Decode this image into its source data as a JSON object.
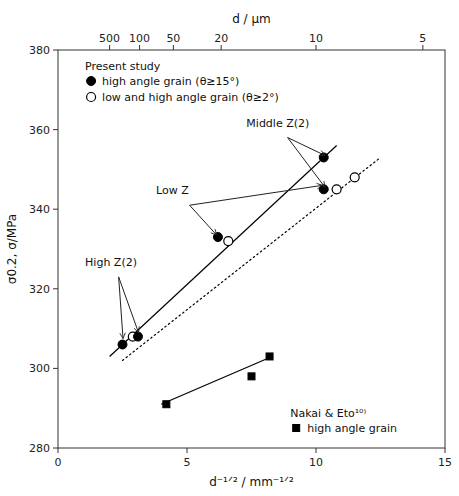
{
  "chart_data": {
    "type": "scatter",
    "x_label": "d⁻¹ᐟ² / mm⁻¹ᐟ²",
    "x2_label": "d / μm",
    "y_label": "σ0.2, σ/MPa",
    "xlim": [
      0,
      15
    ],
    "ylim": [
      280,
      380
    ],
    "xticks": [
      0,
      5,
      10,
      15
    ],
    "yticks": [
      280,
      300,
      320,
      340,
      360,
      380
    ],
    "x2lim": [
      0,
      15
    ],
    "x2ticks": [
      {
        "value": 2.0,
        "label": "500"
      },
      {
        "value": 3.162,
        "label": "100"
      },
      {
        "value": 4.472,
        "label": "50"
      },
      {
        "value": 6.324,
        "label": "20"
      },
      {
        "value": 10.0,
        "label": "10"
      },
      {
        "value": 14.142,
        "label": "5"
      }
    ],
    "grid": false,
    "legend": "upper left",
    "series": [
      {
        "type": "line",
        "color": "black",
        "line_style": "solid",
        "x": [
          4.0,
          8.3
        ],
        "values": [
          291,
          303
        ]
      },
      {
        "type": "line",
        "color": "black",
        "line_style": "solid",
        "x": [
          2.0,
          10.8
        ],
        "values": [
          303,
          356
        ]
      },
      {
        "type": "line",
        "color": "black",
        "line_style": "dotted",
        "x": [
          2.5,
          12.5
        ],
        "values": [
          302,
          353
        ]
      },
      {
        "type": "scatter",
        "name": "high angle grain",
        "group": "Nakai & Eto¹⁰⁾",
        "color": "black",
        "marker": "square",
        "x": [
          4.2,
          7.5,
          8.2
        ],
        "values": [
          291,
          298,
          303
        ]
      },
      {
        "type": "scatter",
        "name": "low and high angle grain (θ≥2°)",
        "group": "Present study",
        "color": "black",
        "marker": "circle-open",
        "x": [
          2.9,
          6.6,
          10.8,
          11.5
        ],
        "values": [
          308,
          332,
          345,
          348
        ]
      },
      {
        "type": "scatter",
        "name": "high angle grain (θ≥15°)",
        "group": "Present study",
        "color": "black",
        "marker": "circle",
        "x": [
          2.5,
          3.1,
          6.2,
          10.3,
          10.3
        ],
        "values": [
          306,
          308,
          333,
          345,
          353
        ]
      }
    ],
    "arrows": [
      {
        "x": 8.9,
        "y": 358,
        "x_end": 10.35,
        "y_end": 353.5
      },
      {
        "x": 8.9,
        "y": 358,
        "x_end": 10.35,
        "y_end": 345.5
      },
      {
        "x": 5.1,
        "y": 341,
        "x_end": 6.15,
        "y_end": 333.5
      },
      {
        "x": 5.1,
        "y": 341,
        "x_end": 10.25,
        "y_end": 346
      },
      {
        "x": 2.35,
        "y": 323,
        "x_end": 2.52,
        "y_end": 307.5
      },
      {
        "x": 2.35,
        "y": 323,
        "x_end": 3.12,
        "y_end": 309
      }
    ],
    "annotations": [
      {
        "text": "Middle Z(2)",
        "x": 7.3,
        "y": 360
      },
      {
        "text": "Low Z",
        "x": 3.8,
        "y": 343
      },
      {
        "text": "High Z(2)",
        "x": 1.05,
        "y": 325
      }
    ]
  }
}
